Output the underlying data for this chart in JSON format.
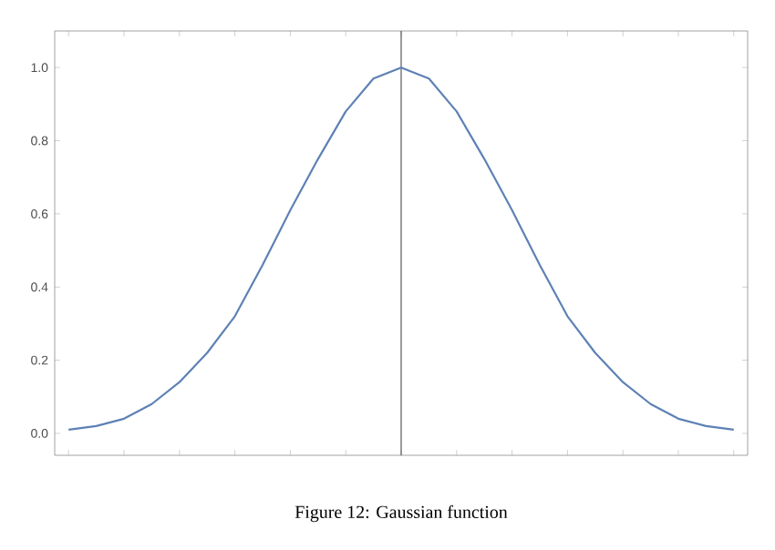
{
  "chart_data": {
    "type": "line",
    "categories": [
      null,
      null,
      null,
      null,
      null,
      null,
      null,
      null,
      null,
      null,
      null,
      null,
      null,
      null,
      null,
      null,
      null,
      null,
      null,
      null,
      null,
      null,
      null,
      null,
      null
    ],
    "values": [
      0.01,
      0.02,
      0.04,
      0.08,
      0.14,
      0.22,
      0.32,
      0.46,
      0.61,
      0.75,
      0.88,
      0.97,
      1.0,
      0.97,
      0.88,
      0.75,
      0.61,
      0.46,
      0.32,
      0.22,
      0.14,
      0.08,
      0.04,
      0.02,
      0.01
    ],
    "color": "#5e81b5",
    "ylim": [
      -0.06,
      1.1
    ],
    "yticks": [
      {
        "value": 0,
        "label": "0.0"
      },
      {
        "value": 0.2,
        "label": "0.2"
      },
      {
        "value": 0.4,
        "label": "0.4"
      },
      {
        "value": 0.6,
        "label": "0.6"
      },
      {
        "value": 0.8,
        "label": "0.8"
      },
      {
        "value": 1.0,
        "label": "1.0"
      }
    ],
    "tick_labels": "y",
    "annotations": [
      "Figure 12: Gaussian function"
    ]
  }
}
